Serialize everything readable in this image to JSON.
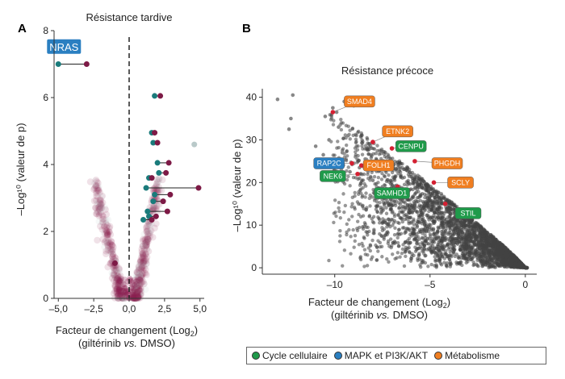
{
  "chart_data": [
    {
      "type": "scatter",
      "panel": "A",
      "title": "Résistance tardive",
      "xlabel_line1": "Facteur de changement (Log",
      "xlabel_sub": "2",
      "xlabel_line1_end": ")",
      "xlabel_line2_a": "(giltérinib ",
      "xlabel_line2_it": "vs.",
      "xlabel_line2_b": " DMSO)",
      "ylabel": "–Log¹⁰ (valeur de p)",
      "xlim": [
        -5.3,
        5.3
      ],
      "ylim": [
        0,
        8
      ],
      "xticks": [
        "–5,0",
        "–2,5",
        "0,0",
        "2,5",
        "5,0"
      ],
      "xtick_values": [
        -5,
        -2.5,
        0,
        2.5,
        5
      ],
      "yticks": [
        "0",
        "2",
        "4",
        "6",
        "8"
      ],
      "ytick_values": [
        0,
        2,
        4,
        6,
        8
      ],
      "cutoff_x": 0,
      "colors": {
        "teal": "#1a7b7b",
        "maroon": "#7d1a46",
        "faint": "#8a1d4e",
        "grey": "#b9c9c9"
      },
      "pairs": [
        {
          "x1": -5.0,
          "x2": -3.0,
          "y": 7.0
        },
        {
          "x1": 1.8,
          "x2": 2.2,
          "y": 6.05
        },
        {
          "x1": 1.6,
          "x2": 1.8,
          "y": 4.95
        },
        {
          "x1": 1.7,
          "x2": 2.0,
          "y": 4.65
        },
        {
          "x1": 2.0,
          "x2": 2.8,
          "y": 4.05
        },
        {
          "x1": 2.1,
          "x2": 2.6,
          "y": 3.75
        },
        {
          "x1": 1.4,
          "x2": 1.6,
          "y": 3.6
        },
        {
          "x1": 1.2,
          "x2": 4.9,
          "y": 3.3
        },
        {
          "x1": 1.8,
          "x2": 2.9,
          "y": 3.1
        },
        {
          "x1": 1.7,
          "x2": 2.4,
          "y": 2.9
        },
        {
          "x1": 1.3,
          "x2": 2.7,
          "y": 2.6
        },
        {
          "x1": 1.4,
          "x2": 1.9,
          "y": 2.45
        },
        {
          "x1": 1.0,
          "x2": 1.6,
          "y": 2.35
        }
      ],
      "extra_points": [
        {
          "x": -1.0,
          "y": 1.05,
          "color": "maroon"
        },
        {
          "x": 4.6,
          "y": 4.6,
          "color": "grey"
        }
      ],
      "annotation": {
        "text": "NRAS",
        "x": -4.6,
        "y": 7.5,
        "color": "#2a7fc1"
      }
    },
    {
      "type": "scatter",
      "panel": "B",
      "title": "Résistance précoce",
      "xlabel_line1": "Facteur de changement (Log",
      "xlabel_sub": "2",
      "xlabel_line1_end": ")",
      "xlabel_line2_a": "(giltérinib ",
      "xlabel_line2_it": "vs.",
      "xlabel_line2_b": " DMSO)",
      "ylabel": "–Log¹⁰ (valeur de p)",
      "xlim": [
        -13.8,
        0.6
      ],
      "ylim": [
        -1.5,
        42
      ],
      "xticks": [
        "–10",
        "–5",
        "0"
      ],
      "xtick_values": [
        -10,
        -5,
        0
      ],
      "yticks": [
        "0",
        "10",
        "20",
        "30",
        "40"
      ],
      "ytick_values": [
        0,
        10,
        20,
        30,
        40
      ],
      "colors": {
        "point": "#444444",
        "highlight": "#d42032"
      },
      "outliers": [
        {
          "x": -13.0,
          "y": 39.5
        },
        {
          "x": -12.2,
          "y": 40.5
        },
        {
          "x": -12.3,
          "y": 35.0
        },
        {
          "x": -12.4,
          "y": 32.5
        },
        {
          "x": -10.1,
          "y": 37.5
        },
        {
          "x": -9.9,
          "y": 36.5
        },
        {
          "x": -9.5,
          "y": 39.0
        },
        {
          "x": -9.0,
          "y": 38.0
        },
        {
          "x": -10.5,
          "y": 35.5
        },
        {
          "x": -9.8,
          "y": 33.0
        },
        {
          "x": -9.3,
          "y": 31.0
        },
        {
          "x": -10.3,
          "y": 30.0
        },
        {
          "x": -11.0,
          "y": 28.5
        },
        {
          "x": -10.6,
          "y": 26.5
        },
        {
          "x": -9.6,
          "y": 27.0
        },
        {
          "x": -8.7,
          "y": 23.5
        },
        {
          "x": -8.4,
          "y": 25.5
        },
        {
          "x": -9.2,
          "y": 22.5
        },
        {
          "x": -7.8,
          "y": 24.5
        },
        {
          "x": -8.0,
          "y": 20.5
        },
        {
          "x": -7.5,
          "y": 19.0
        }
      ],
      "genes": [
        {
          "label": "SMAD4",
          "category": "metabolisme",
          "x": -10.1,
          "y": 36.5,
          "lx": -8.7,
          "ly": 39.0
        },
        {
          "label": "ETNK2",
          "category": "metabolisme",
          "x": -8.0,
          "y": 29.5,
          "lx": -6.7,
          "ly": 32.0
        },
        {
          "label": "CENPU",
          "category": "cycle",
          "x": -7.0,
          "y": 28.0,
          "lx": -6.0,
          "ly": 28.5
        },
        {
          "label": "PHGDH",
          "category": "metabolisme",
          "x": -5.8,
          "y": 25.0,
          "lx": -4.1,
          "ly": 24.5
        },
        {
          "label": "RAP2C",
          "category": "mapk",
          "x": -9.1,
          "y": 24.5,
          "lx": -10.3,
          "ly": 24.5
        },
        {
          "label": "FOLH1",
          "category": "metabolisme",
          "x": -8.6,
          "y": 24.0,
          "lx": -7.7,
          "ly": 24.0
        },
        {
          "label": "NEK6",
          "category": "cycle",
          "x": -8.8,
          "y": 22.0,
          "lx": -10.1,
          "ly": 21.5
        },
        {
          "label": "SCLY",
          "category": "metabolisme",
          "x": -4.8,
          "y": 20.0,
          "lx": -3.4,
          "ly": 20.0
        },
        {
          "label": "SAMHD1",
          "category": "cycle",
          "x": -6.7,
          "y": 19.0,
          "lx": -7.0,
          "ly": 17.5
        },
        {
          "label": "STIL",
          "category": "cycle",
          "x": -4.2,
          "y": 15.0,
          "lx": -3.0,
          "ly": 12.8
        }
      ]
    }
  ],
  "legend": {
    "items": [
      {
        "key": "cycle",
        "label": "Cycle cellulaire",
        "color": "#1f9a4a"
      },
      {
        "key": "mapk",
        "label": "MAPK et PI3K/AKT",
        "color": "#2a7fc1"
      },
      {
        "key": "metabolisme",
        "label": "Métabolisme",
        "color": "#f07e20"
      }
    ]
  }
}
